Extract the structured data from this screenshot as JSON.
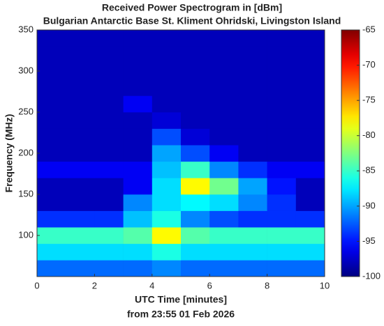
{
  "chart_data": {
    "type": "heatmap",
    "title": "Received Power Spectrogram in [dBm]",
    "subtitle": "Bulgarian Antarctic Base St. Kliment Ohridski, Livingston Island",
    "x_label": "UTC Time [minutes]",
    "x_label_2": "from 23:55 01 Feb 2026",
    "y_label": "Frequency (MHz)",
    "x": [
      0.5,
      1.5,
      2.5,
      3.5,
      4.5,
      5.5,
      6.5,
      7.5,
      8.5,
      9.5
    ],
    "y": [
      60,
      80,
      100,
      120,
      140,
      160,
      180,
      200,
      220,
      240,
      260,
      280,
      300,
      320,
      340
    ],
    "z": [
      [
        -92,
        -92,
        -92,
        -92,
        -91,
        -92,
        -92,
        -92,
        -92,
        -92
      ],
      [
        -88,
        -88,
        -88,
        -88,
        -86,
        -88,
        -88,
        -88,
        -88,
        -88
      ],
      [
        -85,
        -85,
        -85,
        -84,
        -78,
        -84,
        -85,
        -85,
        -85,
        -85
      ],
      [
        -94,
        -94,
        -94,
        -89,
        -86,
        -91,
        -93,
        -94,
        -94,
        -94
      ],
      [
        -98,
        -98,
        -98,
        -91,
        -88,
        -87,
        -88,
        -91,
        -94,
        -98
      ],
      [
        -98,
        -98,
        -98,
        -96,
        -88,
        -78,
        -83,
        -90,
        -95,
        -98
      ],
      [
        -96,
        -96,
        -96,
        -96,
        -89,
        -85,
        -91,
        -94,
        -96,
        -96
      ],
      [
        -98,
        -98,
        -98,
        -98,
        -90,
        -93,
        -96,
        -98,
        -98,
        -98
      ],
      [
        -98,
        -98,
        -98,
        -98,
        -93,
        -97,
        -98,
        -98,
        -98,
        -98
      ],
      [
        -98,
        -98,
        -98,
        -98,
        -97,
        -98,
        -98,
        -98,
        -98,
        -98
      ],
      [
        -98,
        -98,
        -98,
        -96,
        -98,
        -98,
        -98,
        -98,
        -98,
        -98
      ],
      [
        -98,
        -98,
        -98,
        -98,
        -98,
        -98,
        -98,
        -98,
        -98,
        -98
      ],
      [
        -98,
        -98,
        -98,
        -98,
        -98,
        -98,
        -98,
        -98,
        -98,
        -98
      ],
      [
        -98,
        -98,
        -98,
        -98,
        -98,
        -98,
        -98,
        -98,
        -98,
        -98
      ],
      [
        -98,
        -98,
        -98,
        -98,
        -98,
        -98,
        -98,
        -98,
        -98,
        -98
      ]
    ],
    "xlim": [
      0,
      10
    ],
    "xticks": [
      0,
      2,
      4,
      6,
      8,
      10
    ],
    "ylim": [
      50,
      350
    ],
    "yticks": [
      100,
      150,
      200,
      250,
      300,
      350
    ],
    "colormap": "jet",
    "clim": [
      -100,
      -65
    ],
    "cticks": [
      -100,
      -95,
      -90,
      -85,
      -80,
      -75,
      -70,
      -65
    ]
  }
}
